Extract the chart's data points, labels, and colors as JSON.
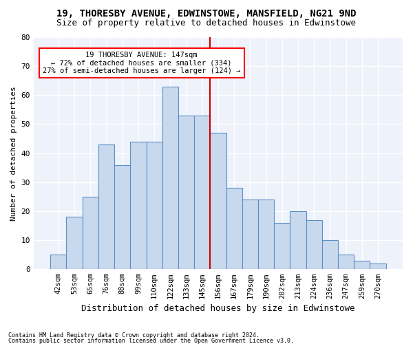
{
  "title1": "19, THORESBY AVENUE, EDWINSTOWE, MANSFIELD, NG21 9ND",
  "title2": "Size of property relative to detached houses in Edwinstowe",
  "xlabel": "Distribution of detached houses by size in Edwinstowe",
  "ylabel": "Number of detached properties",
  "categories": [
    "42sqm",
    "53sqm",
    "65sqm",
    "76sqm",
    "88sqm",
    "99sqm",
    "110sqm",
    "122sqm",
    "133sqm",
    "145sqm",
    "156sqm",
    "167sqm",
    "179sqm",
    "190sqm",
    "202sqm",
    "213sqm",
    "224sqm",
    "236sqm",
    "247sqm",
    "259sqm",
    "270sqm"
  ],
  "values": [
    5,
    18,
    25,
    43,
    36,
    44,
    44,
    63,
    53,
    53,
    47,
    28,
    24,
    24,
    16,
    20,
    17,
    10,
    5,
    3,
    2
  ],
  "bar_color": "#c9d9ed",
  "bar_edge_color": "#5b8fc9",
  "background_color": "#eef2fa",
  "grid_color": "#ffffff",
  "annotation_text": "19 THORESBY AVENUE: 147sqm\n← 72% of detached houses are smaller (334)\n27% of semi-detached houses are larger (124) →",
  "vline_color": "#cc0000",
  "vline_position": 9.5,
  "ylim": [
    0,
    80
  ],
  "yticks": [
    0,
    10,
    20,
    30,
    40,
    50,
    60,
    70,
    80
  ],
  "footer1": "Contains HM Land Registry data © Crown copyright and database right 2024.",
  "footer2": "Contains public sector information licensed under the Open Government Licence v3.0."
}
